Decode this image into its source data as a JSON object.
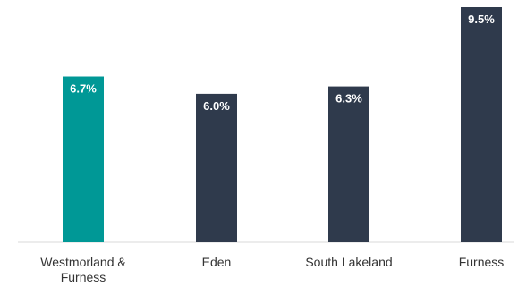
{
  "chart_data": {
    "type": "bar",
    "categories": [
      [
        "Westmorland &",
        "Furness"
      ],
      [
        "Eden"
      ],
      [
        "South Lakeland"
      ],
      [
        "Furness"
      ]
    ],
    "values": [
      6.7,
      6.0,
      6.3,
      9.5
    ],
    "data_labels": [
      "6.7%",
      "6.0%",
      "6.3%",
      "9.5%"
    ],
    "colors": [
      "#009896",
      "#2f3a4c",
      "#2f3a4c",
      "#2f3a4c"
    ],
    "ylim": [
      0,
      9.5
    ],
    "grid": false,
    "legend": "none",
    "title": "",
    "xlabel": "",
    "ylabel": ""
  }
}
